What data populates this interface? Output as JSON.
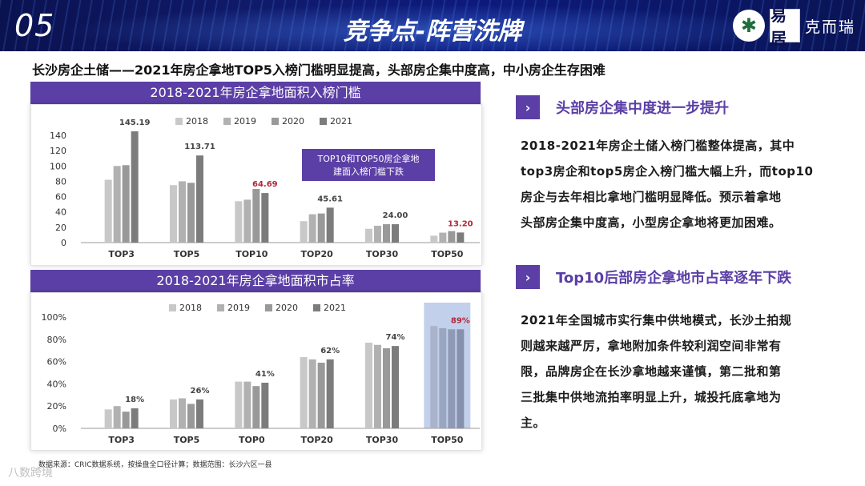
{
  "header": {
    "slide_number": "05",
    "title": "竞争点-阵营洗牌",
    "brand_name": "克而瑞",
    "brand_mark": "易居",
    "logo_symbol": "✱"
  },
  "subtitle": "长沙房企土储——2021年房企拿地TOP5入榜门槛明显提高，头部房企集中度高，中小房企生存困难",
  "colors": {
    "accent": "#5b3fa6",
    "series": [
      "#c8c8c8",
      "#b1b1b1",
      "#999999",
      "#7c7c7c"
    ],
    "highlight_label": "#b0283a"
  },
  "chart_data": [
    {
      "type": "bar",
      "title": "2018-2021年房企拿地面积入榜门槛",
      "categories": [
        "TOP3",
        "TOP5",
        "TOP10",
        "TOP20",
        "TOP30",
        "TOP50"
      ],
      "series": [
        {
          "name": "2018",
          "values": [
            82,
            75,
            54,
            28,
            18,
            9
          ]
        },
        {
          "name": "2019",
          "values": [
            100,
            80,
            56,
            37,
            22,
            13
          ]
        },
        {
          "name": "2020",
          "values": [
            101,
            78,
            70,
            38,
            24,
            15
          ]
        },
        {
          "name": "2021",
          "values": [
            145.19,
            113.71,
            64.69,
            45.61,
            24.0,
            13.2
          ]
        }
      ],
      "value_labels": [
        "145.19",
        "113.71",
        "64.69",
        "45.61",
        "24.00",
        "13.20"
      ],
      "highlight_labels": [
        false,
        false,
        true,
        false,
        false,
        true
      ],
      "ylim": [
        0,
        140
      ],
      "yticks": [
        "0",
        "20",
        "40",
        "60",
        "80",
        "100",
        "120",
        "140"
      ],
      "annotation": [
        "TOP10和TOP50房企拿地",
        "建面入榜门槛下跌"
      ],
      "legend_position": "top"
    },
    {
      "type": "bar",
      "title": "2018-2021年房企拿地面积市占率",
      "categories": [
        "TOP3",
        "TOP5",
        "TOP0",
        "TOP20",
        "TOP30",
        "TOP50"
      ],
      "series": [
        {
          "name": "2018",
          "values": [
            17,
            26,
            42,
            64,
            77,
            92
          ]
        },
        {
          "name": "2019",
          "values": [
            20,
            27,
            42,
            62,
            75,
            90
          ]
        },
        {
          "name": "2020",
          "values": [
            15,
            22,
            38,
            59,
            72,
            89
          ]
        },
        {
          "name": "2021",
          "values": [
            18,
            26,
            41,
            62,
            74,
            89
          ]
        }
      ],
      "value_labels": [
        "18%",
        "26%",
        "41%",
        "62%",
        "74%",
        "89%"
      ],
      "highlight_labels": [
        false,
        false,
        false,
        false,
        false,
        true
      ],
      "highlight_group": 5,
      "ylim": [
        0,
        100
      ],
      "yticks": [
        "0%",
        "20%",
        "40%",
        "60%",
        "80%",
        "100%"
      ],
      "legend_position": "top"
    }
  ],
  "sections": [
    {
      "icon": "›",
      "heading": "头部房企集中度进一步提升",
      "lines": [
        "2018-2021年房企土储入榜门槛整体提高，其中",
        "top3房企和top5房企入榜门槛大幅上升，而top10",
        "房企与去年相比拿地门槛明显降低。预示着拿地",
        "头部房企集中度高，小型房企拿地将更加困难。"
      ]
    },
    {
      "icon": "›",
      "heading": "Top10后部房企拿地市占率逐年下跌",
      "lines": [
        "2021年全国城市实行集中供地模式，长沙土拍规",
        "则越来越严厉，拿地附加条件较利润空间非常有",
        "限，品牌房企在长沙拿地越来谨慎，第二批和第",
        "三批集中供地流拍率明显上升，城投托底拿地为",
        "主。"
      ]
    }
  ],
  "source": "数据来源：CRIC数据系统，按操盘全口径计算；数据范围：长沙六区一县",
  "watermark": "八数跨境"
}
